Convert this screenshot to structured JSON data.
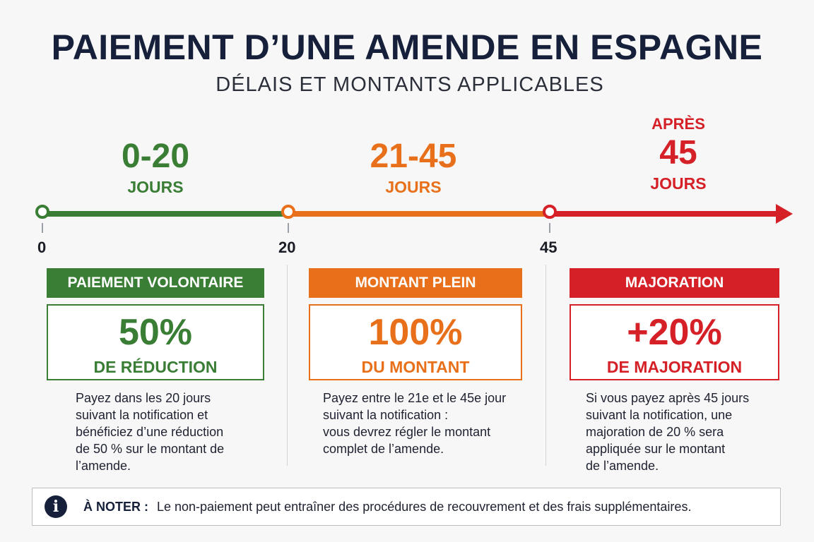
{
  "header": {
    "title": "PAIEMENT D’UNE AMENDE EN ESPAGNE",
    "subtitle": "DÉLAIS ET MONTANTS APPLICABLES"
  },
  "colors": {
    "green": "#3a7d35",
    "orange": "#e8701a",
    "red": "#d42026",
    "navy": "#16203a"
  },
  "timeline": {
    "ticks": [
      "0",
      "20",
      "45"
    ],
    "periods": [
      {
        "prefix": "",
        "range": "0-20",
        "unit": "JOURS"
      },
      {
        "prefix": "",
        "range": "21-45",
        "unit": "JOURS"
      },
      {
        "prefix": "APRÈS",
        "range": "45",
        "unit": "JOURS"
      }
    ]
  },
  "cards": [
    {
      "label": "PAIEMENT VOLONTAIRE",
      "value": "50%",
      "caption": "DE RÉDUCTION",
      "lines": [
        "Payez dans les 20 jours",
        "suivant la notification et",
        "bénéficiez d’une réduction",
        "de 50 % sur le montant de",
        "l’amende."
      ]
    },
    {
      "label": "MONTANT PLEIN",
      "value": "100%",
      "caption": "DU MONTANT",
      "lines": [
        "Payez entre le 21e et le 45e jour",
        "suivant la notification :",
        "vous devrez régler le montant",
        "complet de l’amende."
      ]
    },
    {
      "label": "MAJORATION",
      "value": "+20%",
      "caption": "DE MAJORATION",
      "lines": [
        "Si vous payez après 45 jours",
        "suivant la notification, une",
        "majoration de 20 % sera",
        "appliquée sur le montant",
        "de l’amende."
      ]
    }
  ],
  "note": {
    "icon": "info-icon",
    "label": "À NOTER :",
    "text": "Le non-paiement peut entraîner des procédures de recouvrement et des frais supplémentaires."
  }
}
